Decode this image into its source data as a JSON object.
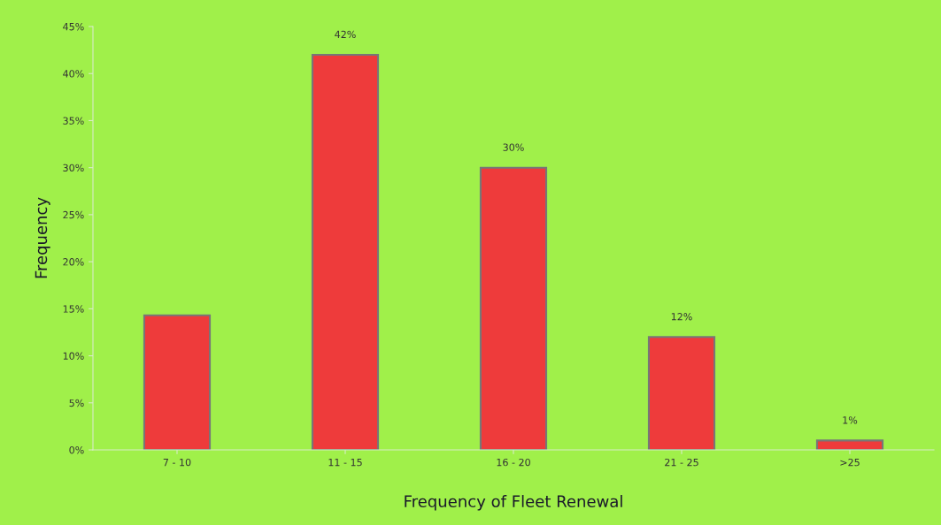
{
  "chart_data": {
    "type": "bar",
    "xlabel": "Frequency of Fleet Renewal",
    "ylabel": "Frequency",
    "categories": [
      "7 - 10",
      "11 - 15",
      "16 - 20",
      "21 - 25",
      ">25"
    ],
    "values": [
      14.3,
      42,
      30,
      12,
      1
    ],
    "value_labels": [
      null,
      "42%",
      "30%",
      "12%",
      "1%"
    ],
    "color": "#ee3b3b",
    "ylim": [
      0,
      45
    ],
    "yticks": [
      {
        "value": 0,
        "label": "0%"
      },
      {
        "value": 5,
        "label": "5%"
      },
      {
        "value": 10,
        "label": "10%"
      },
      {
        "value": 15,
        "label": "15%"
      },
      {
        "value": 20,
        "label": "20%"
      },
      {
        "value": 25,
        "label": "25%"
      },
      {
        "value": 30,
        "label": "30%"
      },
      {
        "value": 35,
        "label": "35%"
      },
      {
        "value": 40,
        "label": "40%"
      },
      {
        "value": 45,
        "label": "45%"
      }
    ],
    "grid": false,
    "legend": false
  }
}
